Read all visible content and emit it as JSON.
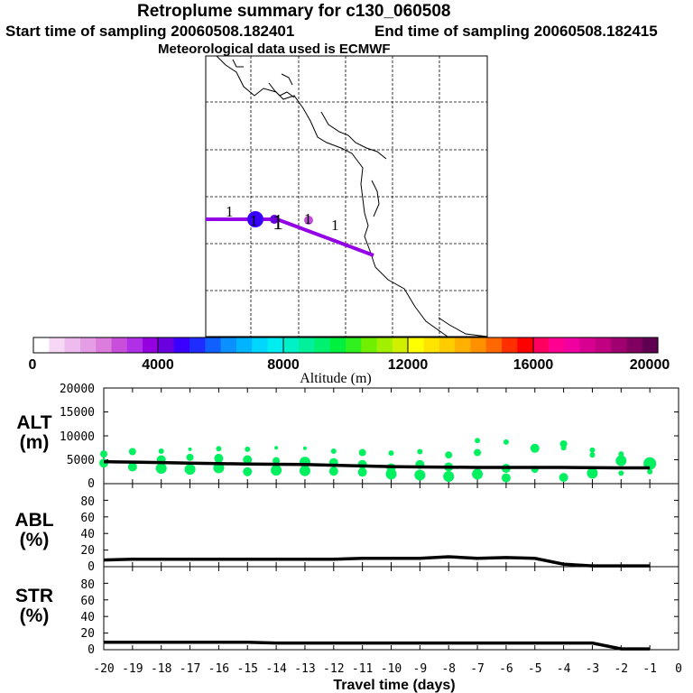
{
  "header": {
    "title": "Retroplume summary for c130_060508",
    "start_label": "Start time of sampling 20060508.182401",
    "end_label": "End time of sampling 20060508.182415",
    "met_label": "Meteorological data used is ECMWF"
  },
  "map": {
    "labels": [
      "1",
      "1",
      "1",
      "1",
      "1"
    ]
  },
  "colorbar": {
    "title": "Altitude (m)",
    "ticks": [
      "0",
      "4000",
      "8000",
      "12000",
      "16000",
      "20000"
    ],
    "colors": [
      "#ffffff",
      "#f6d8f6",
      "#eebbee",
      "#e59ee5",
      "#dc7cdc",
      "#c84fdc",
      "#b030e8",
      "#9400e0",
      "#6a00e0",
      "#3a00ff",
      "#1f2cff",
      "#1060ff",
      "#0a90ff",
      "#00b4ff",
      "#00d6ff",
      "#00eef0",
      "#00f0c8",
      "#00f09c",
      "#00f070",
      "#00f040",
      "#30f020",
      "#70f000",
      "#a0f000",
      "#d0f000",
      "#ffff00",
      "#ffe400",
      "#ffcc00",
      "#ffb000",
      "#ff9000",
      "#ff6800",
      "#ff3000",
      "#ff0000",
      "#ff0060",
      "#ff0090",
      "#f000a0",
      "#d80090",
      "#c00080",
      "#a00070",
      "#800060",
      "#600050"
    ]
  },
  "chart_data": [
    {
      "type": "scatter",
      "panel_label": "ALT (m)",
      "ylim": [
        0,
        20000
      ],
      "yticks": [
        "20000",
        "15000",
        "10000",
        "5000",
        "0"
      ],
      "xlim": [
        -20,
        0
      ],
      "marker_color": "#00f060",
      "mean_line": {
        "x": [
          -20,
          -19,
          -18,
          -17,
          -16,
          -15,
          -14,
          -13,
          -12,
          -11,
          -10,
          -9,
          -8,
          -7,
          -6,
          -5,
          -4,
          -3,
          -2,
          -1
        ],
        "y": [
          4600,
          4500,
          4400,
          4300,
          4200,
          4100,
          4050,
          4000,
          3850,
          3700,
          3550,
          3500,
          3450,
          3400,
          3400,
          3400,
          3400,
          3350,
          3300,
          3300
        ]
      },
      "points": [
        {
          "x": -20,
          "y": 6200,
          "s": 4
        },
        {
          "x": -20,
          "y": 4300,
          "s": 5
        },
        {
          "x": -19,
          "y": 6700,
          "s": 4
        },
        {
          "x": -19,
          "y": 3500,
          "s": 5
        },
        {
          "x": -18,
          "y": 6800,
          "s": 3
        },
        {
          "x": -18,
          "y": 5000,
          "s": 5
        },
        {
          "x": -18,
          "y": 3200,
          "s": 6
        },
        {
          "x": -17,
          "y": 7200,
          "s": 2
        },
        {
          "x": -17,
          "y": 5500,
          "s": 4
        },
        {
          "x": -17,
          "y": 3000,
          "s": 6
        },
        {
          "x": -16,
          "y": 7300,
          "s": 3
        },
        {
          "x": -16,
          "y": 5300,
          "s": 5
        },
        {
          "x": -16,
          "y": 3300,
          "s": 6
        },
        {
          "x": -15,
          "y": 7200,
          "s": 3
        },
        {
          "x": -15,
          "y": 5000,
          "s": 5
        },
        {
          "x": -15,
          "y": 2500,
          "s": 5
        },
        {
          "x": -14,
          "y": 7500,
          "s": 2
        },
        {
          "x": -14,
          "y": 4800,
          "s": 4
        },
        {
          "x": -14,
          "y": 2800,
          "s": 6
        },
        {
          "x": -13,
          "y": 7400,
          "s": 2
        },
        {
          "x": -13,
          "y": 4500,
          "s": 6
        },
        {
          "x": -13,
          "y": 2700,
          "s": 6
        },
        {
          "x": -12,
          "y": 6800,
          "s": 3
        },
        {
          "x": -12,
          "y": 4400,
          "s": 5
        },
        {
          "x": -12,
          "y": 2600,
          "s": 5
        },
        {
          "x": -11,
          "y": 6500,
          "s": 4
        },
        {
          "x": -11,
          "y": 4000,
          "s": 5
        },
        {
          "x": -11,
          "y": 2400,
          "s": 5
        },
        {
          "x": -10,
          "y": 6400,
          "s": 3
        },
        {
          "x": -10,
          "y": 3300,
          "s": 5
        },
        {
          "x": -10,
          "y": 2000,
          "s": 6
        },
        {
          "x": -9,
          "y": 6700,
          "s": 3
        },
        {
          "x": -9,
          "y": 4000,
          "s": 5
        },
        {
          "x": -9,
          "y": 1800,
          "s": 6
        },
        {
          "x": -8,
          "y": 6000,
          "s": 4
        },
        {
          "x": -8,
          "y": 3500,
          "s": 5
        },
        {
          "x": -8,
          "y": 1500,
          "s": 6
        },
        {
          "x": -7,
          "y": 9000,
          "s": 3
        },
        {
          "x": -7,
          "y": 6500,
          "s": 4
        },
        {
          "x": -7,
          "y": 2000,
          "s": 6
        },
        {
          "x": -6,
          "y": 8700,
          "s": 3
        },
        {
          "x": -6,
          "y": 3200,
          "s": 5
        },
        {
          "x": -6,
          "y": 1200,
          "s": 5
        },
        {
          "x": -5,
          "y": 7400,
          "s": 5
        },
        {
          "x": -5,
          "y": 3000,
          "s": 4
        },
        {
          "x": -4,
          "y": 8300,
          "s": 4
        },
        {
          "x": -4,
          "y": 7500,
          "s": 3
        },
        {
          "x": -4,
          "y": 1300,
          "s": 5
        },
        {
          "x": -3,
          "y": 7000,
          "s": 3
        },
        {
          "x": -3,
          "y": 6000,
          "s": 3
        },
        {
          "x": -3,
          "y": 2200,
          "s": 6
        },
        {
          "x": -2,
          "y": 6200,
          "s": 3
        },
        {
          "x": -2,
          "y": 4800,
          "s": 6
        },
        {
          "x": -2,
          "y": 2200,
          "s": 3
        },
        {
          "x": -1,
          "y": 4200,
          "s": 7
        },
        {
          "x": -1,
          "y": 2500,
          "s": 3
        }
      ]
    },
    {
      "type": "line",
      "panel_label": "ABL (%)",
      "ylim": [
        0,
        100
      ],
      "yticks": [
        "80",
        "60",
        "40",
        "20",
        "0"
      ],
      "xlim": [
        -20,
        0
      ],
      "x": [
        -20,
        -19,
        -18,
        -17,
        -16,
        -15,
        -14,
        -13,
        -12,
        -11,
        -10,
        -9,
        -8,
        -7,
        -6,
        -5,
        -4,
        -3,
        -2,
        -1
      ],
      "y": [
        8,
        9,
        9,
        9,
        9,
        9,
        9,
        9,
        9,
        10,
        10,
        10,
        12,
        10,
        11,
        10,
        3,
        1,
        1,
        1
      ]
    },
    {
      "type": "line",
      "panel_label": "STR (%)",
      "ylim": [
        0,
        100
      ],
      "yticks": [
        "80",
        "60",
        "40",
        "20",
        "0"
      ],
      "xlim": [
        -20,
        0
      ],
      "xlabel": "Travel time (days)",
      "xticks": [
        "-20",
        "-19",
        "-18",
        "-17",
        "-16",
        "-15",
        "-14",
        "-13",
        "-12",
        "-11",
        "-10",
        "-9",
        "-8",
        "-7",
        "-6",
        "-5",
        "-4",
        "-3",
        "-2",
        "-1",
        "0"
      ],
      "x": [
        -20,
        -19,
        -18,
        -17,
        -16,
        -15,
        -14,
        -13,
        -12,
        -11,
        -10,
        -9,
        -8,
        -7,
        -6,
        -5,
        -4,
        -3,
        -2,
        -1
      ],
      "y": [
        9,
        9,
        9,
        9,
        9,
        9,
        8,
        8,
        8,
        8,
        8,
        8,
        8,
        8,
        8,
        8,
        8,
        8,
        1,
        1
      ]
    }
  ]
}
